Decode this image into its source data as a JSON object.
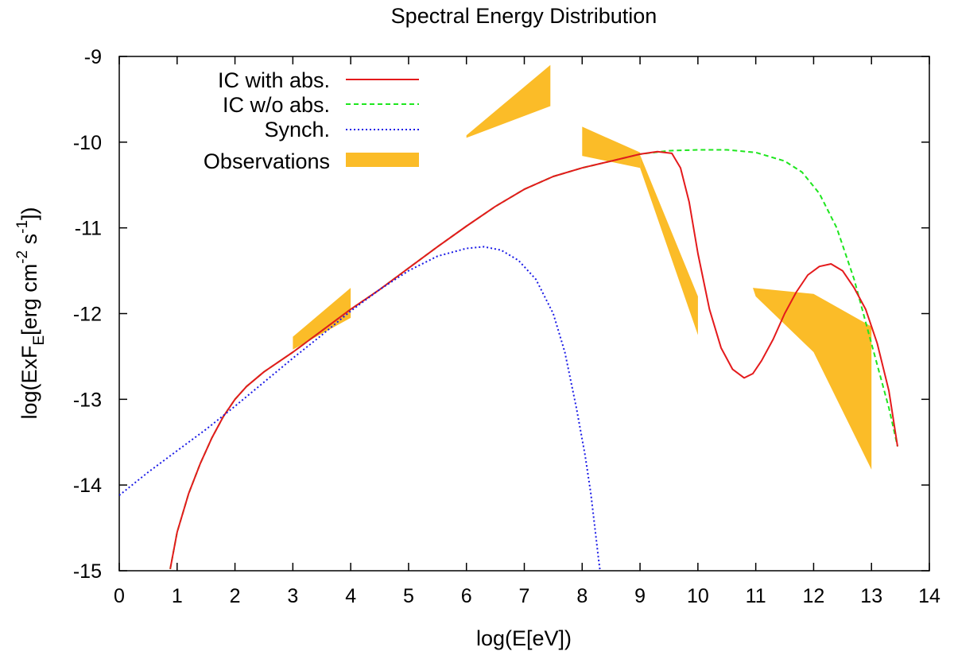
{
  "chart_data": {
    "type": "line",
    "title": "Spectral Energy Distribution",
    "xlabel": "log(E[eV])",
    "ylabel": "log(ExF_E[erg cm^-2 s^-1])",
    "ylabel_parts": {
      "a": "log(ExF",
      "sub": "E",
      "b": "[erg cm",
      "sup1": "-2",
      "c": " s",
      "sup2": "-1",
      "d": "])"
    },
    "xlim": [
      0,
      14
    ],
    "ylim": [
      -15,
      -9
    ],
    "xticks": [
      0,
      1,
      2,
      3,
      4,
      5,
      6,
      7,
      8,
      9,
      10,
      11,
      12,
      13,
      14
    ],
    "yticks": [
      -9,
      -10,
      -11,
      -12,
      -13,
      -14,
      -15
    ],
    "grid": false,
    "legend_position": "top-left",
    "colors": {
      "ic_abs": "#e41a1c",
      "ic_noabs": "#1ee61e",
      "synch": "#1a1ae6",
      "obs": "#fbbc28"
    },
    "series": [
      {
        "name": "IC with abs.",
        "style": "solid",
        "color_key": "ic_abs",
        "x": [
          0.88,
          1.0,
          1.2,
          1.4,
          1.6,
          1.8,
          2.0,
          2.2,
          2.5,
          3.0,
          3.5,
          4.0,
          4.5,
          5.0,
          5.5,
          6.0,
          6.5,
          7.0,
          7.5,
          8.0,
          8.5,
          9.0,
          9.3,
          9.55,
          9.7,
          9.85,
          10.0,
          10.2,
          10.4,
          10.6,
          10.8,
          10.95,
          11.1,
          11.3,
          11.5,
          11.7,
          11.9,
          12.1,
          12.3,
          12.5,
          12.7,
          12.9,
          13.1,
          13.3,
          13.45
        ],
        "y": [
          -14.98,
          -14.55,
          -14.1,
          -13.75,
          -13.45,
          -13.2,
          -13.0,
          -12.85,
          -12.68,
          -12.45,
          -12.2,
          -11.95,
          -11.72,
          -11.47,
          -11.22,
          -10.98,
          -10.75,
          -10.55,
          -10.4,
          -10.3,
          -10.22,
          -10.14,
          -10.11,
          -10.13,
          -10.3,
          -10.7,
          -11.3,
          -11.95,
          -12.4,
          -12.65,
          -12.75,
          -12.7,
          -12.55,
          -12.3,
          -12.0,
          -11.75,
          -11.55,
          -11.45,
          -11.42,
          -11.5,
          -11.7,
          -11.95,
          -12.35,
          -12.9,
          -13.55
        ]
      },
      {
        "name": "IC w/o abs.",
        "style": "dashed",
        "color_key": "ic_noabs",
        "x": [
          0.88,
          1.0,
          1.2,
          1.4,
          1.6,
          1.8,
          2.0,
          2.2,
          2.5,
          3.0,
          3.5,
          4.0,
          4.5,
          5.0,
          5.5,
          6.0,
          6.5,
          7.0,
          7.5,
          8.0,
          8.5,
          9.0,
          9.5,
          10.0,
          10.5,
          11.0,
          11.5,
          11.8,
          12.1,
          12.4,
          12.7,
          12.9,
          13.1,
          13.3,
          13.45
        ],
        "y": [
          -14.98,
          -14.55,
          -14.1,
          -13.75,
          -13.45,
          -13.2,
          -13.0,
          -12.85,
          -12.68,
          -12.45,
          -12.2,
          -11.95,
          -11.72,
          -11.47,
          -11.22,
          -10.98,
          -10.75,
          -10.55,
          -10.4,
          -10.3,
          -10.22,
          -10.14,
          -10.1,
          -10.09,
          -10.09,
          -10.12,
          -10.22,
          -10.35,
          -10.6,
          -11.0,
          -11.6,
          -12.1,
          -12.6,
          -13.1,
          -13.55
        ]
      },
      {
        "name": "Synch.",
        "style": "dotted",
        "color_key": "synch",
        "x": [
          0,
          0.5,
          1.0,
          1.5,
          2.0,
          2.5,
          3.0,
          3.5,
          4.0,
          4.5,
          5.0,
          5.5,
          6.0,
          6.3,
          6.6,
          6.9,
          7.2,
          7.5,
          7.7,
          7.9,
          8.05,
          8.15,
          8.22,
          8.28,
          8.31
        ],
        "y": [
          -14.12,
          -13.85,
          -13.6,
          -13.35,
          -13.08,
          -12.8,
          -12.52,
          -12.25,
          -11.97,
          -11.72,
          -11.5,
          -11.33,
          -11.24,
          -11.22,
          -11.26,
          -11.38,
          -11.6,
          -12.0,
          -12.45,
          -13.1,
          -13.65,
          -14.1,
          -14.5,
          -14.85,
          -15.0
        ]
      }
    ],
    "observations": {
      "name": "Observations",
      "polygons": [
        [
          [
            3.0,
            -12.27
          ],
          [
            4.0,
            -11.7
          ],
          [
            4.0,
            -12.05
          ],
          [
            3.0,
            -12.42
          ]
        ],
        [
          [
            6.0,
            -9.92
          ],
          [
            7.45,
            -9.1
          ],
          [
            7.45,
            -9.58
          ],
          [
            6.0,
            -9.95
          ]
        ],
        [
          [
            8.0,
            -9.82
          ],
          [
            9.0,
            -10.12
          ],
          [
            9.0,
            -10.3
          ],
          [
            8.0,
            -10.16
          ]
        ],
        [
          [
            9.0,
            -10.15
          ],
          [
            10.0,
            -11.8
          ],
          [
            10.0,
            -12.25
          ],
          [
            9.0,
            -10.3
          ]
        ],
        [
          [
            10.95,
            -11.7
          ],
          [
            12.0,
            -11.77
          ],
          [
            13.0,
            -12.15
          ],
          [
            13.0,
            -13.82
          ],
          [
            12.0,
            -12.45
          ],
          [
            11.0,
            -11.8
          ]
        ]
      ]
    }
  }
}
